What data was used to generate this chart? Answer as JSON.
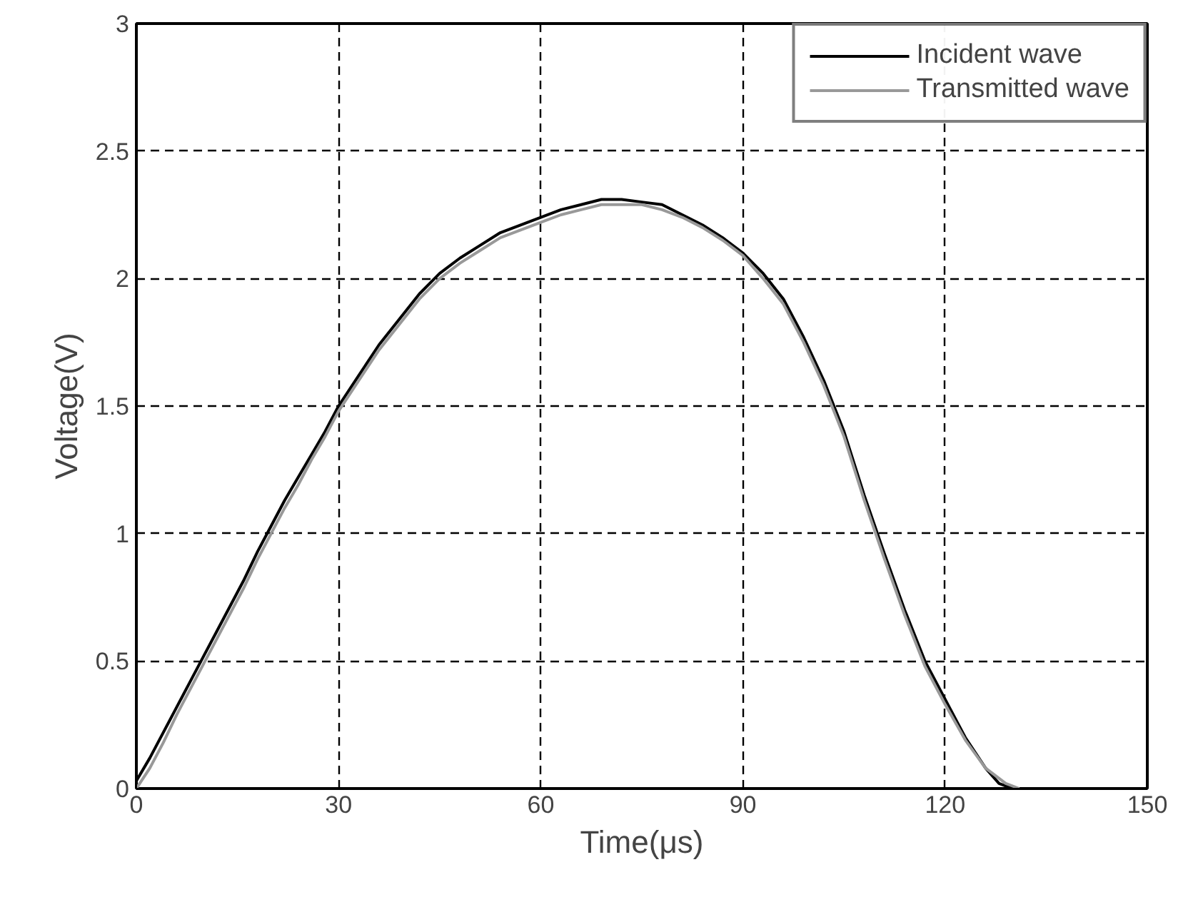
{
  "chart_data": {
    "type": "line",
    "xlabel": "Time(μs)",
    "ylabel": "Voltage(V)",
    "xlim": [
      0,
      150
    ],
    "xticks": [
      0,
      30,
      60,
      90,
      120,
      150
    ],
    "ylim": [
      0,
      3
    ],
    "yticks": [
      0,
      0.5,
      1,
      1.5,
      2,
      2.5,
      3
    ],
    "grid": true,
    "legend": "top right",
    "line_style": "solid",
    "marker": "none",
    "series": [
      {
        "name": "Incident wave",
        "color": "#000000",
        "x": [
          0,
          2,
          4,
          6,
          8,
          10,
          12,
          14,
          16,
          18,
          20,
          22,
          24,
          26,
          28,
          30,
          33,
          36,
          39,
          42,
          45,
          48,
          51,
          54,
          57,
          60,
          63,
          66,
          69,
          72,
          75,
          78,
          81,
          84,
          87,
          90,
          93,
          96,
          99,
          102,
          105,
          108,
          111,
          114,
          117,
          120,
          123,
          126,
          128,
          130
        ],
        "values": [
          0.03,
          0.12,
          0.22,
          0.32,
          0.42,
          0.52,
          0.62,
          0.72,
          0.82,
          0.93,
          1.03,
          1.13,
          1.22,
          1.31,
          1.4,
          1.5,
          1.62,
          1.74,
          1.84,
          1.94,
          2.02,
          2.08,
          2.13,
          2.18,
          2.21,
          2.24,
          2.27,
          2.29,
          2.31,
          2.31,
          2.3,
          2.29,
          2.25,
          2.21,
          2.16,
          2.1,
          2.02,
          1.92,
          1.77,
          1.6,
          1.4,
          1.15,
          0.92,
          0.7,
          0.5,
          0.35,
          0.2,
          0.08,
          0.02,
          0
        ]
      },
      {
        "name": "Transmitted wave",
        "color": "#999999",
        "x": [
          0,
          2,
          4,
          6,
          8,
          10,
          12,
          14,
          16,
          18,
          20,
          22,
          24,
          26,
          28,
          30,
          33,
          36,
          39,
          42,
          45,
          48,
          51,
          54,
          57,
          60,
          63,
          66,
          69,
          72,
          75,
          78,
          81,
          84,
          87,
          90,
          93,
          96,
          99,
          102,
          105,
          108,
          111,
          114,
          117,
          120,
          123,
          126,
          129,
          131
        ],
        "values": [
          0.0,
          0.08,
          0.18,
          0.29,
          0.39,
          0.49,
          0.59,
          0.69,
          0.79,
          0.9,
          1.0,
          1.1,
          1.19,
          1.29,
          1.38,
          1.48,
          1.6,
          1.72,
          1.82,
          1.92,
          2.0,
          2.06,
          2.11,
          2.16,
          2.19,
          2.22,
          2.25,
          2.27,
          2.29,
          2.29,
          2.29,
          2.27,
          2.24,
          2.2,
          2.15,
          2.09,
          2.0,
          1.9,
          1.75,
          1.58,
          1.38,
          1.13,
          0.9,
          0.68,
          0.48,
          0.33,
          0.19,
          0.08,
          0.02,
          0
        ]
      }
    ]
  }
}
